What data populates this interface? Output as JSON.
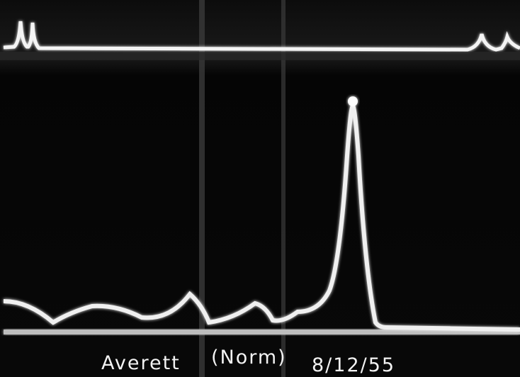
{
  "caption": {
    "name": "Averett",
    "note": "(Norm)",
    "date": "8/12/55"
  }
}
